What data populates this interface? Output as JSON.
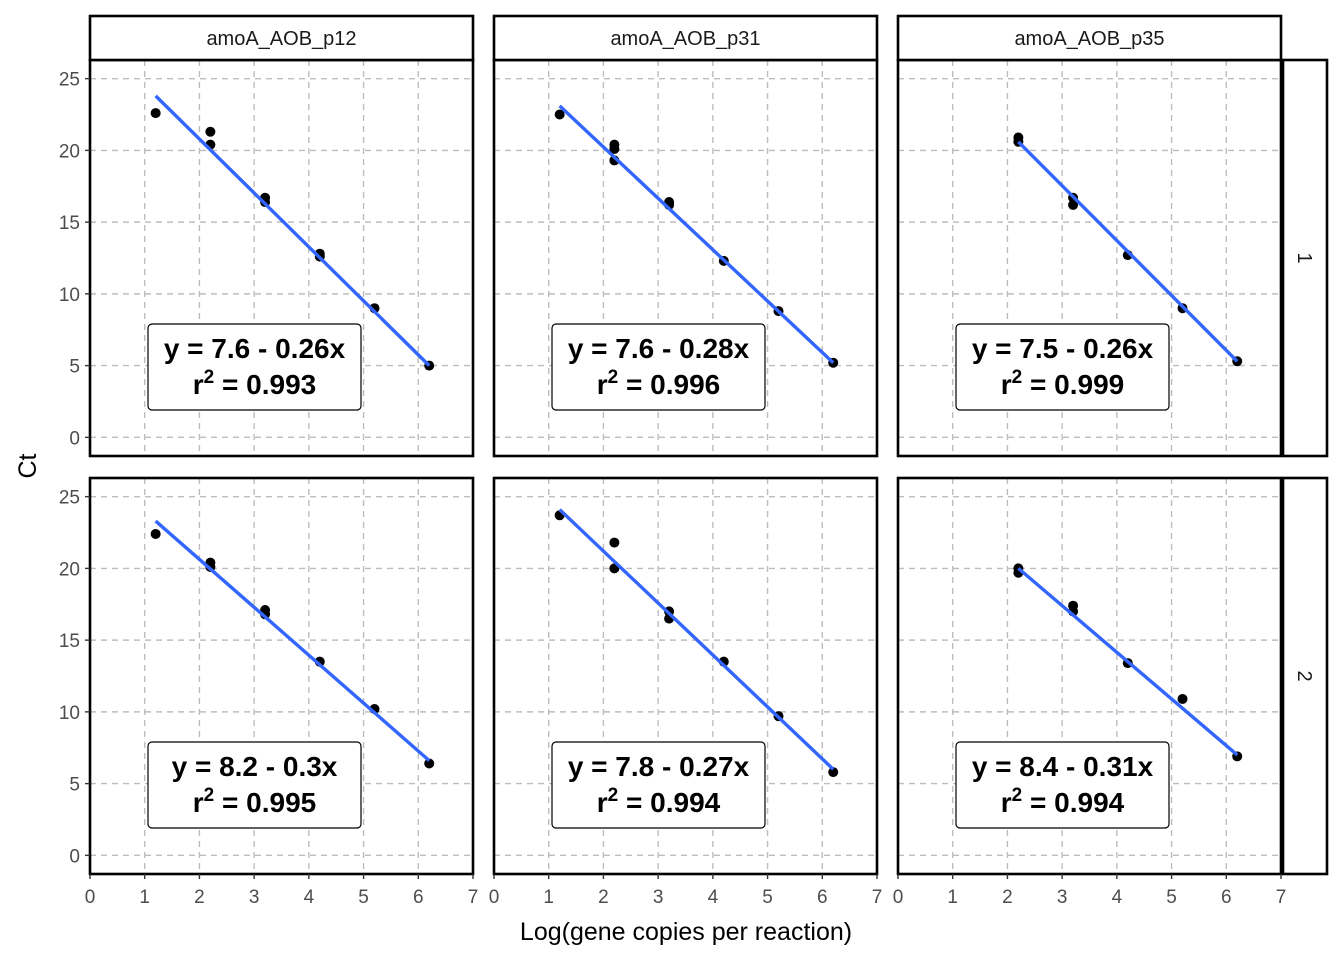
{
  "chart_data": {
    "type": "scatter",
    "xlabel": "Log(gene copies per reaction)",
    "ylabel": "Ct",
    "xlim": [
      0,
      7
    ],
    "ylim": [
      -1.3,
      26.3
    ],
    "x_ticks": [
      "0",
      "1",
      "2",
      "3",
      "4",
      "5",
      "6",
      "7"
    ],
    "y_ticks": [
      "0",
      "5",
      "10",
      "15",
      "20",
      "25"
    ],
    "grid": "dashed",
    "columns": [
      "amoA_AOB_p12",
      "amoA_AOB_p31",
      "amoA_AOB_p35"
    ],
    "rows": [
      "1",
      "2"
    ],
    "colors": {
      "point": "#000000",
      "fit_line": "#3366ff"
    },
    "panels": [
      {
        "column": "amoA_AOB_p12",
        "row": "1",
        "eq": "y = 7.6 - 0.26x",
        "r2_label": "r",
        "r2_sup": "2",
        "r2_value": " = 0.993",
        "points": [
          [
            1.2,
            22.6
          ],
          [
            2.2,
            21.3
          ],
          [
            2.2,
            20.4
          ],
          [
            3.2,
            16.7
          ],
          [
            3.2,
            16.4
          ],
          [
            4.2,
            12.8
          ],
          [
            4.2,
            12.6
          ],
          [
            5.2,
            9.0
          ],
          [
            6.2,
            5.0
          ]
        ],
        "fit": [
          [
            1.2,
            23.8
          ],
          [
            6.2,
            5.0
          ]
        ]
      },
      {
        "column": "amoA_AOB_p31",
        "row": "1",
        "eq": "y = 7.6 - 0.28x",
        "r2_label": "r",
        "r2_sup": "2",
        "r2_value": " = 0.996",
        "points": [
          [
            1.2,
            22.5
          ],
          [
            2.2,
            20.4
          ],
          [
            2.2,
            20.1
          ],
          [
            2.2,
            19.3
          ],
          [
            3.2,
            16.4
          ],
          [
            3.2,
            16.2
          ],
          [
            4.2,
            12.3
          ],
          [
            5.2,
            8.8
          ],
          [
            6.2,
            5.2
          ]
        ],
        "fit": [
          [
            1.2,
            23.1
          ],
          [
            6.2,
            5.2
          ]
        ]
      },
      {
        "column": "amoA_AOB_p35",
        "row": "1",
        "eq": "y = 7.5 - 0.26x",
        "r2_label": "r",
        "r2_sup": "2",
        "r2_value": " = 0.999",
        "points": [
          [
            2.2,
            20.9
          ],
          [
            2.2,
            20.6
          ],
          [
            3.2,
            16.7
          ],
          [
            3.2,
            16.2
          ],
          [
            4.2,
            12.7
          ],
          [
            5.2,
            9.0
          ],
          [
            6.2,
            5.3
          ]
        ],
        "fit": [
          [
            2.2,
            20.6
          ],
          [
            6.2,
            5.3
          ]
        ]
      },
      {
        "column": "amoA_AOB_p12",
        "row": "2",
        "eq": "y = 8.2 - 0.3x",
        "r2_label": "r",
        "r2_sup": "2",
        "r2_value": " = 0.995",
        "points": [
          [
            1.2,
            22.4
          ],
          [
            2.2,
            20.4
          ],
          [
            2.2,
            20.1
          ],
          [
            3.2,
            17.1
          ],
          [
            3.2,
            16.8
          ],
          [
            4.2,
            13.5
          ],
          [
            5.2,
            10.2
          ],
          [
            6.2,
            6.4
          ]
        ],
        "fit": [
          [
            1.2,
            23.3
          ],
          [
            6.2,
            6.6
          ]
        ]
      },
      {
        "column": "amoA_AOB_p31",
        "row": "2",
        "eq": "y = 7.8 - 0.27x",
        "r2_label": "r",
        "r2_sup": "2",
        "r2_value": " = 0.994",
        "points": [
          [
            1.2,
            23.7
          ],
          [
            2.2,
            21.8
          ],
          [
            2.2,
            20.0
          ],
          [
            3.2,
            17.0
          ],
          [
            3.2,
            16.5
          ],
          [
            4.2,
            13.5
          ],
          [
            5.2,
            9.7
          ],
          [
            6.2,
            5.8
          ]
        ],
        "fit": [
          [
            1.2,
            24.1
          ],
          [
            6.2,
            6.0
          ]
        ]
      },
      {
        "column": "amoA_AOB_p35",
        "row": "2",
        "eq": "y = 8.4 - 0.31x",
        "r2_label": "r",
        "r2_sup": "2",
        "r2_value": " = 0.994",
        "points": [
          [
            2.2,
            20.0
          ],
          [
            2.2,
            19.7
          ],
          [
            3.2,
            17.4
          ],
          [
            3.2,
            17.0
          ],
          [
            4.2,
            13.4
          ],
          [
            5.2,
            10.9
          ],
          [
            6.2,
            6.9
          ]
        ],
        "fit": [
          [
            2.2,
            20.0
          ],
          [
            6.2,
            7.0
          ]
        ]
      }
    ]
  }
}
